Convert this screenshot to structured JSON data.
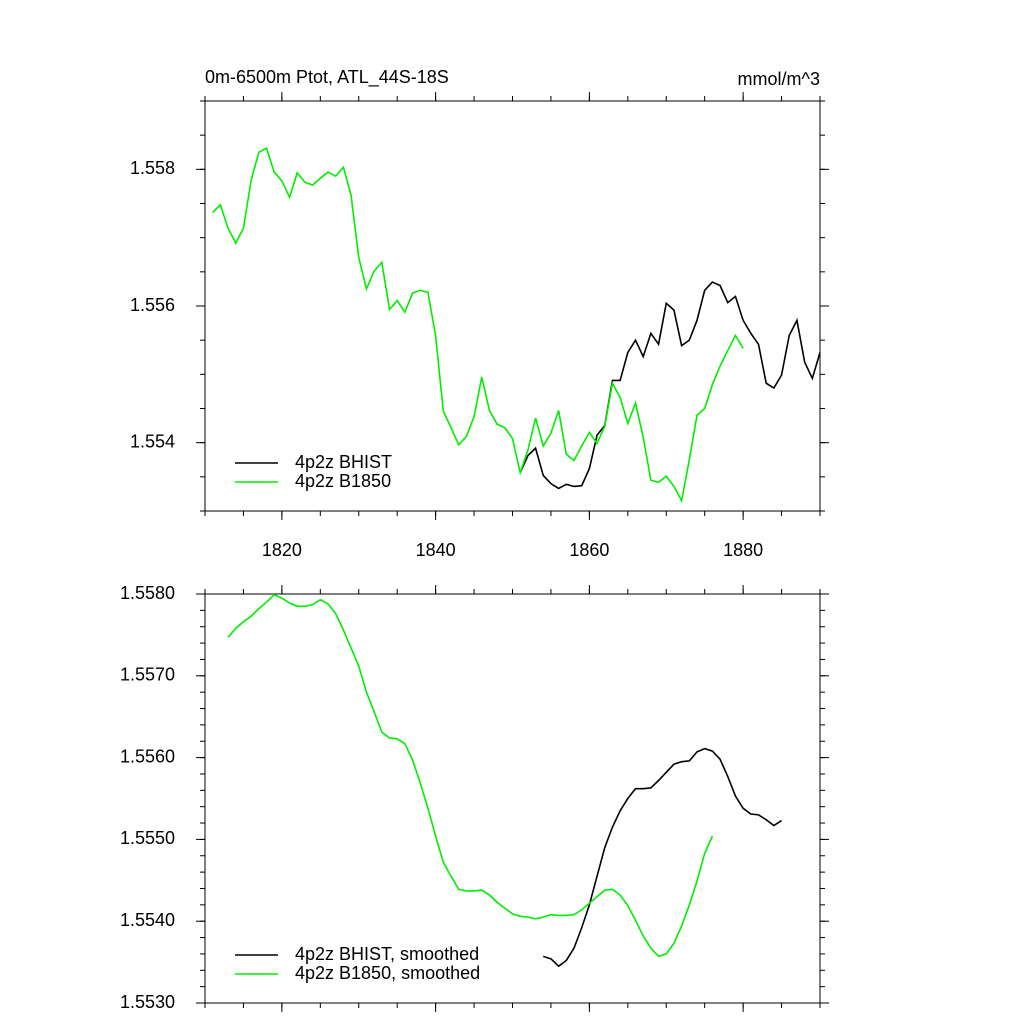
{
  "chart_data": [
    {
      "type": "line",
      "title": "0m-6500m Ptot, ATL_44S-18S",
      "units": "mmol/m^3",
      "x": [
        1810,
        1811,
        1812,
        1813,
        1814,
        1815,
        1816,
        1817,
        1818,
        1819,
        1820,
        1821,
        1822,
        1823,
        1824,
        1825,
        1826,
        1827,
        1828,
        1829,
        1830,
        1831,
        1832,
        1833,
        1834,
        1835,
        1836,
        1837,
        1838,
        1839,
        1840,
        1841,
        1842,
        1843,
        1844,
        1845,
        1846,
        1847,
        1848,
        1849,
        1850,
        1851,
        1852,
        1853,
        1854,
        1855,
        1856,
        1857,
        1858,
        1859,
        1860,
        1861,
        1862,
        1863,
        1864,
        1865,
        1866,
        1867,
        1868,
        1869,
        1870,
        1871,
        1872,
        1873,
        1874,
        1875,
        1876,
        1877,
        1878,
        1879,
        1880,
        1881,
        1882,
        1883,
        1884,
        1885,
        1886,
        1887,
        1888,
        1889,
        1890
      ],
      "series": [
        {
          "name": "4p2z BHIST",
          "color": "#000000",
          "values": [
            null,
            null,
            null,
            null,
            null,
            null,
            null,
            null,
            null,
            null,
            null,
            null,
            null,
            null,
            null,
            null,
            null,
            null,
            null,
            null,
            null,
            null,
            null,
            null,
            null,
            null,
            null,
            null,
            null,
            null,
            null,
            null,
            null,
            null,
            null,
            null,
            null,
            null,
            null,
            null,
            null,
            1.55356,
            1.55381,
            1.55392,
            1.55352,
            1.5534,
            1.55333,
            1.55339,
            1.55336,
            1.55337,
            1.55362,
            1.55411,
            1.55425,
            1.55491,
            1.55491,
            1.55532,
            1.5555,
            1.55526,
            1.5556,
            1.55544,
            1.55604,
            1.55594,
            1.55542,
            1.5555,
            1.55579,
            1.55623,
            1.55635,
            1.5563,
            1.55605,
            1.55614,
            1.55579,
            1.5556,
            1.55544,
            1.55487,
            1.5548,
            1.55499,
            1.55557,
            1.55579,
            1.55518,
            1.55494,
            1.55532
          ]
        },
        {
          "name": "4p2z B1850",
          "color": "#00ee00",
          "values": [
            null,
            1.55737,
            1.55748,
            1.55714,
            1.55692,
            1.55714,
            1.55784,
            1.55825,
            1.55831,
            1.55796,
            1.55783,
            1.55759,
            1.55795,
            1.55781,
            1.55777,
            1.55787,
            1.55796,
            1.5579,
            1.55803,
            1.55762,
            1.55671,
            1.55625,
            1.55651,
            1.55664,
            1.55595,
            1.55608,
            1.55591,
            1.55619,
            1.55623,
            1.5562,
            1.55556,
            1.55446,
            1.55422,
            1.55397,
            1.55409,
            1.55438,
            1.55496,
            1.55447,
            1.55427,
            1.55422,
            1.55406,
            1.55356,
            1.55389,
            1.55436,
            1.55395,
            1.55414,
            1.55447,
            1.55383,
            1.55374,
            1.55395,
            1.55415,
            1.55399,
            1.55424,
            1.55487,
            1.55466,
            1.55428,
            1.55458,
            1.55408,
            1.55345,
            1.55342,
            1.55351,
            1.55336,
            1.55315,
            1.55375,
            1.5544,
            1.5545,
            1.55485,
            1.55512,
            1.55535,
            1.55557,
            1.55538,
            null,
            null,
            null,
            null,
            null,
            null,
            null,
            null,
            null,
            null
          ]
        }
      ],
      "xlim": [
        1810,
        1890
      ],
      "xticks": [
        1820,
        1840,
        1860,
        1880
      ],
      "xtick_labels": true,
      "xminor": 4,
      "ylim": [
        1.553,
        1.559
      ],
      "yticks": [
        1.554,
        1.556,
        1.558
      ],
      "yminor": 4
    },
    {
      "type": "line",
      "x": [
        1810,
        1811,
        1812,
        1813,
        1814,
        1815,
        1816,
        1817,
        1818,
        1819,
        1820,
        1821,
        1822,
        1823,
        1824,
        1825,
        1826,
        1827,
        1828,
        1829,
        1830,
        1831,
        1832,
        1833,
        1834,
        1835,
        1836,
        1837,
        1838,
        1839,
        1840,
        1841,
        1842,
        1843,
        1844,
        1845,
        1846,
        1847,
        1848,
        1849,
        1850,
        1851,
        1852,
        1853,
        1854,
        1855,
        1856,
        1857,
        1858,
        1859,
        1860,
        1861,
        1862,
        1863,
        1864,
        1865,
        1866,
        1867,
        1868,
        1869,
        1870,
        1871,
        1872,
        1873,
        1874,
        1875,
        1876,
        1877,
        1878,
        1879,
        1880,
        1881,
        1882,
        1883,
        1884,
        1885,
        1886,
        1887,
        1888,
        1889,
        1890
      ],
      "series": [
        {
          "name": "4p2z BHIST, smoothed",
          "color": "#000000",
          "values": [
            null,
            null,
            null,
            null,
            null,
            null,
            null,
            null,
            null,
            null,
            null,
            null,
            null,
            null,
            null,
            null,
            null,
            null,
            null,
            null,
            null,
            null,
            null,
            null,
            null,
            null,
            null,
            null,
            null,
            null,
            null,
            null,
            null,
            null,
            null,
            null,
            null,
            null,
            null,
            null,
            null,
            null,
            null,
            null,
            1.55357,
            1.55354,
            1.55345,
            1.55352,
            1.55367,
            1.55392,
            1.5542,
            1.55455,
            1.5549,
            1.55515,
            1.55535,
            1.5555,
            1.55562,
            1.55562,
            1.55563,
            1.55572,
            1.55582,
            1.55592,
            1.55595,
            1.55596,
            1.55607,
            1.55611,
            1.55608,
            1.55598,
            1.55577,
            1.55553,
            1.55538,
            1.55531,
            1.5553,
            1.55524,
            1.55517,
            1.55523,
            null,
            null,
            null,
            null,
            null
          ]
        },
        {
          "name": "4p2z B1850, smoothed",
          "color": "#00ee00",
          "values": [
            null,
            null,
            null,
            1.55747,
            1.55758,
            1.55766,
            1.55773,
            1.55782,
            1.5579,
            1.55799,
            1.55795,
            1.55789,
            1.55785,
            1.55785,
            1.55787,
            1.55793,
            1.55788,
            1.55776,
            1.55756,
            1.55734,
            1.55712,
            1.5568,
            1.55656,
            1.55631,
            1.55624,
            1.55623,
            1.55617,
            1.55597,
            1.55569,
            1.55538,
            1.55504,
            1.55472,
            1.55455,
            1.55439,
            1.55437,
            1.55437,
            1.55438,
            1.55432,
            1.55423,
            1.55416,
            1.55409,
            1.55406,
            1.55405,
            1.55403,
            1.55405,
            1.55408,
            1.55407,
            1.55407,
            1.55408,
            1.55414,
            1.55422,
            1.5543,
            1.55438,
            1.55439,
            1.55432,
            1.55419,
            1.55401,
            1.55382,
            1.55367,
            1.55357,
            1.5536,
            1.55373,
            1.55394,
            1.5542,
            1.55449,
            1.55483,
            1.55504,
            null,
            null,
            null,
            null,
            null,
            null,
            null,
            null,
            null,
            null,
            null,
            null,
            null,
            null
          ]
        }
      ],
      "xlim": [
        1810,
        1890
      ],
      "xticks": [
        1820,
        1840,
        1860,
        1880
      ],
      "xtick_labels": false,
      "xminor": 4,
      "ylim": [
        1.553,
        1.558
      ],
      "yticks": [
        {
          "value": 1.553,
          "label": "1.5530"
        },
        {
          "value": 1.554,
          "label": "1.5540"
        },
        {
          "value": 1.555,
          "label": "1.5550"
        },
        {
          "value": 1.556,
          "label": "1.5560"
        },
        {
          "value": 1.557,
          "label": "1.5570"
        },
        {
          "value": 1.558,
          "label": "1.5580"
        }
      ],
      "yminor": 5
    }
  ]
}
